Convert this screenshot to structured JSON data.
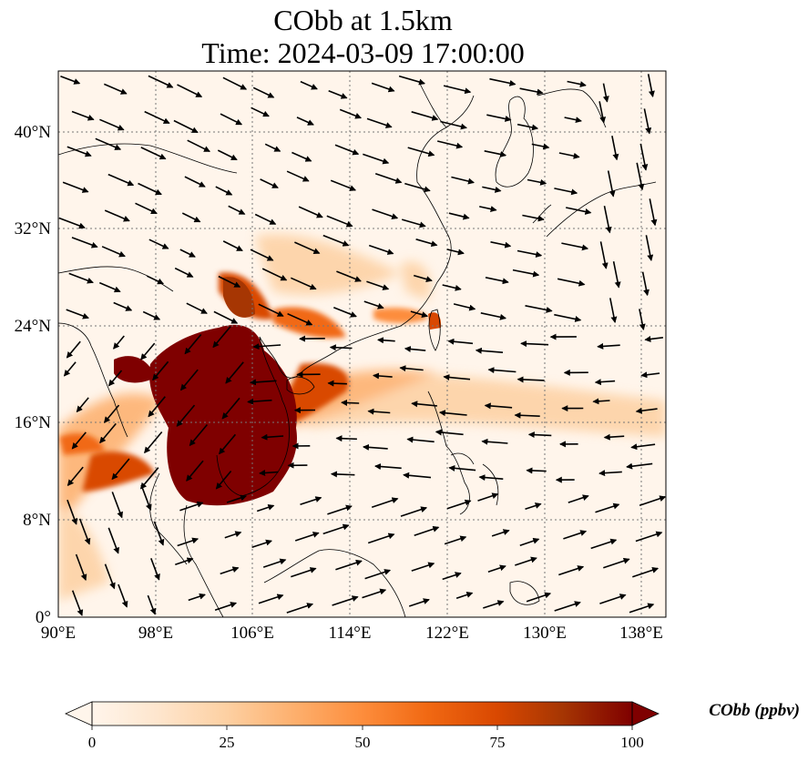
{
  "title": {
    "line1": "CObb at 1.5km",
    "line2": "Time: 2024-03-09 17:00:00"
  },
  "map": {
    "lon_range": [
      90,
      140
    ],
    "lat_range": [
      0,
      45
    ],
    "lon_ticks": [
      {
        "value": 90,
        "label": "90°E"
      },
      {
        "value": 98,
        "label": "98°E"
      },
      {
        "value": 106,
        "label": "106°E"
      },
      {
        "value": 114,
        "label": "114°E"
      },
      {
        "value": 122,
        "label": "122°E"
      },
      {
        "value": 130,
        "label": "130°E"
      },
      {
        "value": 138,
        "label": "138°E"
      }
    ],
    "lat_ticks": [
      {
        "value": 0,
        "label": "0°"
      },
      {
        "value": 8,
        "label": "8°N"
      },
      {
        "value": 16,
        "label": "16°N"
      },
      {
        "value": 24,
        "label": "24°N"
      },
      {
        "value": 32,
        "label": "32°N"
      },
      {
        "value": 40,
        "label": "40°N"
      }
    ],
    "gridlines": true,
    "background_color": "#fff5eb",
    "coastline_color": "#000000",
    "arrow_color": "#000000"
  },
  "colorbar": {
    "label": "CObb (ppbv)",
    "min": 0,
    "max": 100,
    "ticks": [
      {
        "value": 0,
        "label": "0"
      },
      {
        "value": 25,
        "label": "25"
      },
      {
        "value": 50,
        "label": "50"
      },
      {
        "value": 75,
        "label": "75"
      },
      {
        "value": 100,
        "label": "100"
      }
    ],
    "extend": "both",
    "colors": [
      "#fff5eb",
      "#fee6ce",
      "#fdd0a2",
      "#fdae6b",
      "#fd8d3c",
      "#f16913",
      "#d94801",
      "#a63603",
      "#7f0000"
    ]
  }
}
